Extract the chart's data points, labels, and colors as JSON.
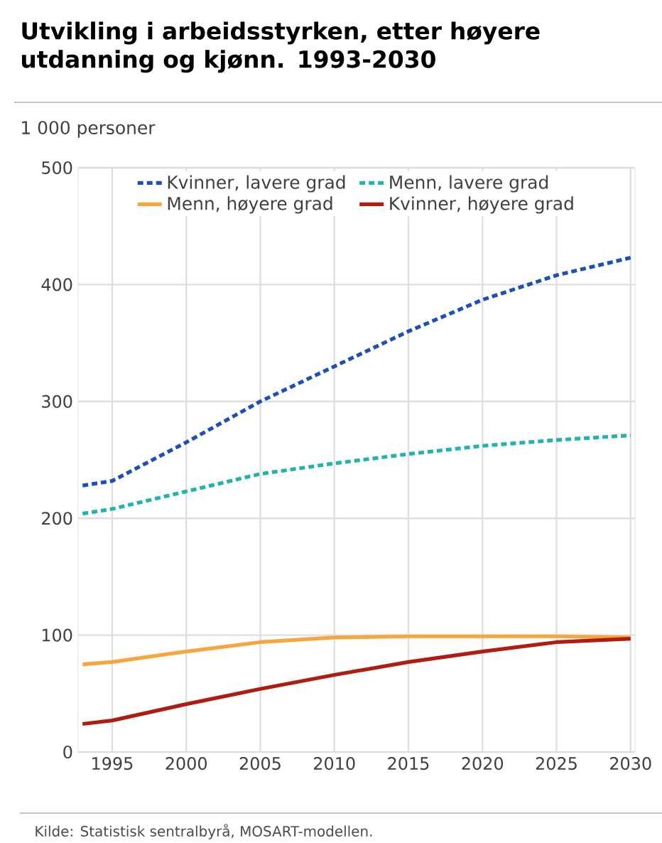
{
  "chart_data": {
    "type": "line",
    "title": "Utvikling i arbeidsstyrken, etter høyere utdanning og kjønn. 1993-2030",
    "ylabel": "1 000 personer",
    "annotations": [
      "Kilde: Statistisk sentralbyrå, MOSART-modellen."
    ],
    "x": [
      1993,
      1995,
      2000,
      2005,
      2010,
      2015,
      2020,
      2025,
      2030
    ],
    "series": [
      {
        "name": "Kvinner, lavere grad",
        "color": "#1f4fb5",
        "line_style": "dashed",
        "values": [
          228,
          232,
          265,
          300,
          330,
          360,
          387,
          408,
          423
        ]
      },
      {
        "name": "Menn, lavere grad",
        "color": "#22b3ad",
        "line_style": "dashed",
        "values": [
          204,
          208,
          223,
          238,
          247,
          255,
          262,
          267,
          271
        ]
      },
      {
        "name": "Menn, høyere grad",
        "color": "#f7a540",
        "line_style": "solid",
        "values": [
          75,
          77,
          86,
          94,
          98,
          99,
          99,
          99,
          98
        ]
      },
      {
        "name": "Kvinner, høyere grad",
        "color": "#b01c10",
        "line_style": "solid",
        "values": [
          24,
          27,
          41,
          54,
          66,
          77,
          86,
          94,
          97
        ]
      }
    ],
    "xlim": [
      1992.7,
      2030.3
    ],
    "ylim": [
      0,
      500
    ],
    "xticks": [
      1995,
      2000,
      2005,
      2010,
      2015,
      2020,
      2025,
      2030
    ],
    "yticks": [
      0,
      100,
      200,
      300,
      400,
      500
    ],
    "grid": true,
    "legend": "top",
    "marker": "none"
  }
}
